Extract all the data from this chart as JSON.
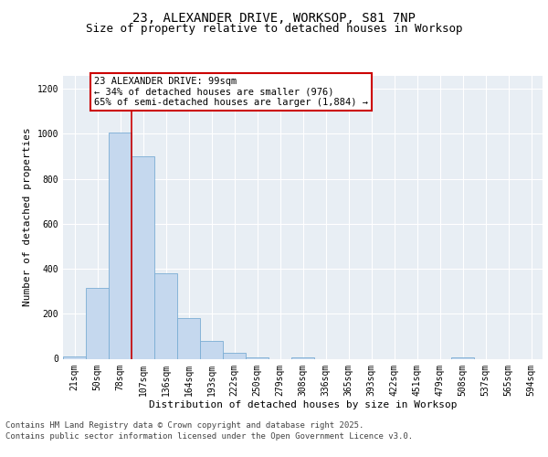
{
  "title": "23, ALEXANDER DRIVE, WORKSOP, S81 7NP",
  "subtitle": "Size of property relative to detached houses in Worksop",
  "xlabel": "Distribution of detached houses by size in Worksop",
  "ylabel": "Number of detached properties",
  "categories": [
    "21sqm",
    "50sqm",
    "78sqm",
    "107sqm",
    "136sqm",
    "164sqm",
    "193sqm",
    "222sqm",
    "250sqm",
    "279sqm",
    "308sqm",
    "336sqm",
    "365sqm",
    "393sqm",
    "422sqm",
    "451sqm",
    "479sqm",
    "508sqm",
    "537sqm",
    "565sqm",
    "594sqm"
  ],
  "values": [
    10,
    315,
    1005,
    900,
    380,
    180,
    80,
    28,
    8,
    0,
    5,
    0,
    0,
    0,
    0,
    0,
    0,
    8,
    0,
    0,
    0
  ],
  "bar_color": "#c5d8ee",
  "bar_edge_color": "#7aadd4",
  "vline_x_index": 2.5,
  "vline_color": "#cc0000",
  "annotation_text": "23 ALEXANDER DRIVE: 99sqm\n← 34% of detached houses are smaller (976)\n65% of semi-detached houses are larger (1,884) →",
  "annotation_box_color": "#cc0000",
  "annotation_box_fill": "white",
  "ylim": [
    0,
    1260
  ],
  "yticks": [
    0,
    200,
    400,
    600,
    800,
    1000,
    1200
  ],
  "background_color": "#e8eef4",
  "grid_color": "white",
  "footer_line1": "Contains HM Land Registry data © Crown copyright and database right 2025.",
  "footer_line2": "Contains public sector information licensed under the Open Government Licence v3.0.",
  "title_fontsize": 10,
  "subtitle_fontsize": 9,
  "axis_label_fontsize": 8,
  "tick_fontsize": 7,
  "annotation_fontsize": 7.5,
  "footer_fontsize": 6.5
}
